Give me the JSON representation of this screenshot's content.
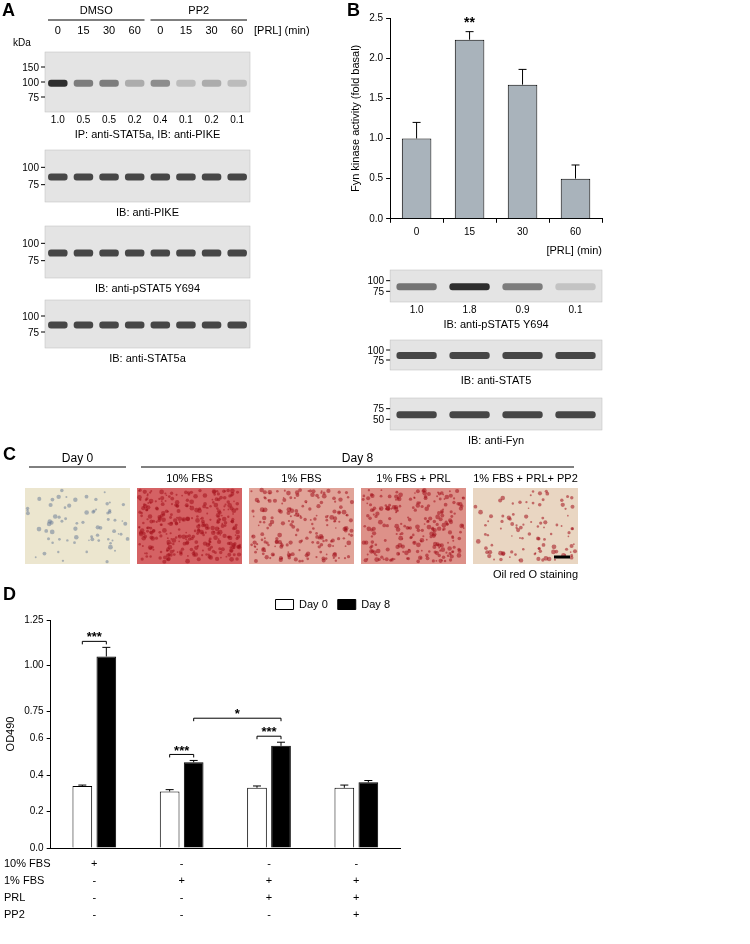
{
  "panel_labels": [
    "A",
    "B",
    "C",
    "D"
  ],
  "panel_a": {
    "groups": [
      "DMSO",
      "PP2"
    ],
    "lanes": [
      "0",
      "15",
      "30",
      "60",
      "0",
      "15",
      "30",
      "60"
    ],
    "lanes_title": "[PRL] (min)",
    "marker_unit": "kDa",
    "blots": [
      {
        "markers": [
          150,
          100,
          75
        ],
        "quantification": [
          "1.0",
          "0.5",
          "0.5",
          "0.2",
          "0.4",
          "0.1",
          "0.2",
          "0.1"
        ],
        "caption": "IP: anti-STAT5a, IB: anti-PIKE"
      },
      {
        "markers": [
          100,
          75
        ],
        "caption": "IB: anti-PIKE"
      },
      {
        "markers": [
          100,
          75
        ],
        "caption": "IB: anti-pSTAT5 Y694"
      },
      {
        "markers": [
          100,
          75
        ],
        "caption": "IB: anti-STAT5a"
      }
    ]
  },
  "chart_data": [
    {
      "type": "bar",
      "categories": [
        "0",
        "15",
        "30",
        "60"
      ],
      "values": [
        1.0,
        2.23,
        1.67,
        0.5
      ],
      "errors": [
        0.2,
        0.1,
        0.19,
        0.17
      ],
      "color": "#a9b3bb",
      "y_label": "Fyn kinase activity (fold basal)",
      "x_label": "[PRL] (min)",
      "ylim": [
        0,
        2.5
      ],
      "yticks": [
        {
          "value": 0,
          "label": "0.0"
        },
        {
          "value": 0.5,
          "label": "0.5"
        },
        {
          "value": 1,
          "label": "1.0"
        },
        {
          "value": 1.5,
          "label": "1.5"
        },
        {
          "value": 2,
          "label": "2.0"
        },
        {
          "value": 2.5,
          "label": "2.5"
        }
      ],
      "grid": false,
      "annotations": [
        {
          "text": "**",
          "category": "15"
        }
      ]
    },
    {
      "type": "bar",
      "categories": [
        null,
        null,
        null,
        null
      ],
      "series": [
        {
          "name": "Day 0",
          "color": "#ffffff",
          "values": [
            0.34,
            0.31,
            0.33,
            0.33
          ],
          "errors": [
            0.005,
            0.01,
            0.01,
            0.015
          ]
        },
        {
          "name": "Day 8",
          "color": "#000000",
          "values": [
            1.05,
            0.47,
            0.56,
            0.36
          ],
          "errors": [
            0.05,
            0.01,
            0.02,
            0.01
          ]
        }
      ],
      "y_label": "OD490",
      "ylim": [
        0,
        1.25
      ],
      "yticks": [
        {
          "value": 0,
          "label": "0.0"
        },
        {
          "value": 0.2,
          "label": "0.2"
        },
        {
          "value": 0.4,
          "label": "0.4"
        },
        {
          "value": 0.6,
          "label": "0.6"
        },
        {
          "value": 0.75,
          "label": "0.75"
        },
        {
          "value": 1,
          "label": "1.00"
        },
        {
          "value": 1.25,
          "label": "1.25"
        }
      ],
      "grid": false,
      "legend": "upper right",
      "conditions": [
        {
          "name": "10% FBS",
          "values": [
            "+",
            "-",
            "-",
            "-"
          ]
        },
        {
          "name": "1% FBS",
          "values": [
            "-",
            "+",
            "+",
            "+"
          ]
        },
        {
          "name": "PRL",
          "values": [
            "-",
            "-",
            "+",
            "+"
          ]
        },
        {
          "name": "PP2",
          "values": [
            "-",
            "-",
            "-",
            "+"
          ]
        }
      ],
      "significance": [
        {
          "text": "***",
          "from": [
            0,
            "Day 0"
          ],
          "to": [
            0,
            "Day 8"
          ]
        },
        {
          "text": "***",
          "from": [
            1,
            "Day 0"
          ],
          "to": [
            1,
            "Day 8"
          ]
        },
        {
          "text": "***",
          "from": [
            2,
            "Day 0"
          ],
          "to": [
            2,
            "Day 8"
          ]
        },
        {
          "text": "*",
          "from": [
            1,
            "Day 8"
          ],
          "to": [
            2,
            "Day 8"
          ]
        }
      ]
    }
  ],
  "panel_b_blots": [
    {
      "markers": [
        100,
        75
      ],
      "quantification": [
        "1.0",
        "1.8",
        "0.9",
        "0.1"
      ],
      "caption": "IB: anti-pSTAT5 Y694"
    },
    {
      "markers": [
        100,
        75
      ],
      "caption": "IB: anti-STAT5"
    },
    {
      "markers": [
        75,
        50
      ],
      "caption": "IB: anti-Fyn"
    }
  ],
  "panel_c": {
    "images": [
      {
        "day": "Day 0"
      },
      {
        "day": "Day 8",
        "condition": "10% FBS"
      },
      {
        "day": "Day 8",
        "condition": "1% FBS"
      },
      {
        "day": "Day 8",
        "condition": "1% FBS + PRL"
      },
      {
        "day": "Day 8",
        "condition": "1% FBS + PRL+ PP2"
      }
    ],
    "stain": "Oil red O staining"
  }
}
